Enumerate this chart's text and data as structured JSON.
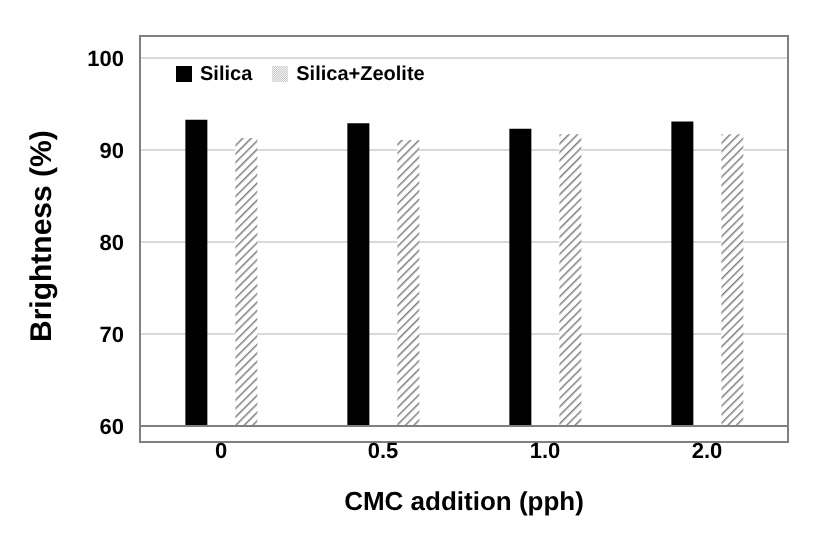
{
  "chart_data": {
    "type": "bar",
    "xlabel": "CMC addition (pph)",
    "ylabel": "Brightness (%)",
    "categories": [
      "0",
      "0.5",
      "1.0",
      "2.0"
    ],
    "series": [
      {
        "name": "Silica",
        "color": "#000000",
        "values": [
          93.3,
          92.9,
          92.3,
          93.1
        ]
      },
      {
        "name": "Silica+Zeolite",
        "color": "#7f7f7f",
        "values": [
          91.3,
          91.1,
          91.7,
          91.7
        ]
      }
    ],
    "ylim": [
      60,
      100
    ],
    "yticks": [
      60,
      70,
      80,
      90,
      100
    ],
    "grid": "y",
    "legend": "top left"
  }
}
